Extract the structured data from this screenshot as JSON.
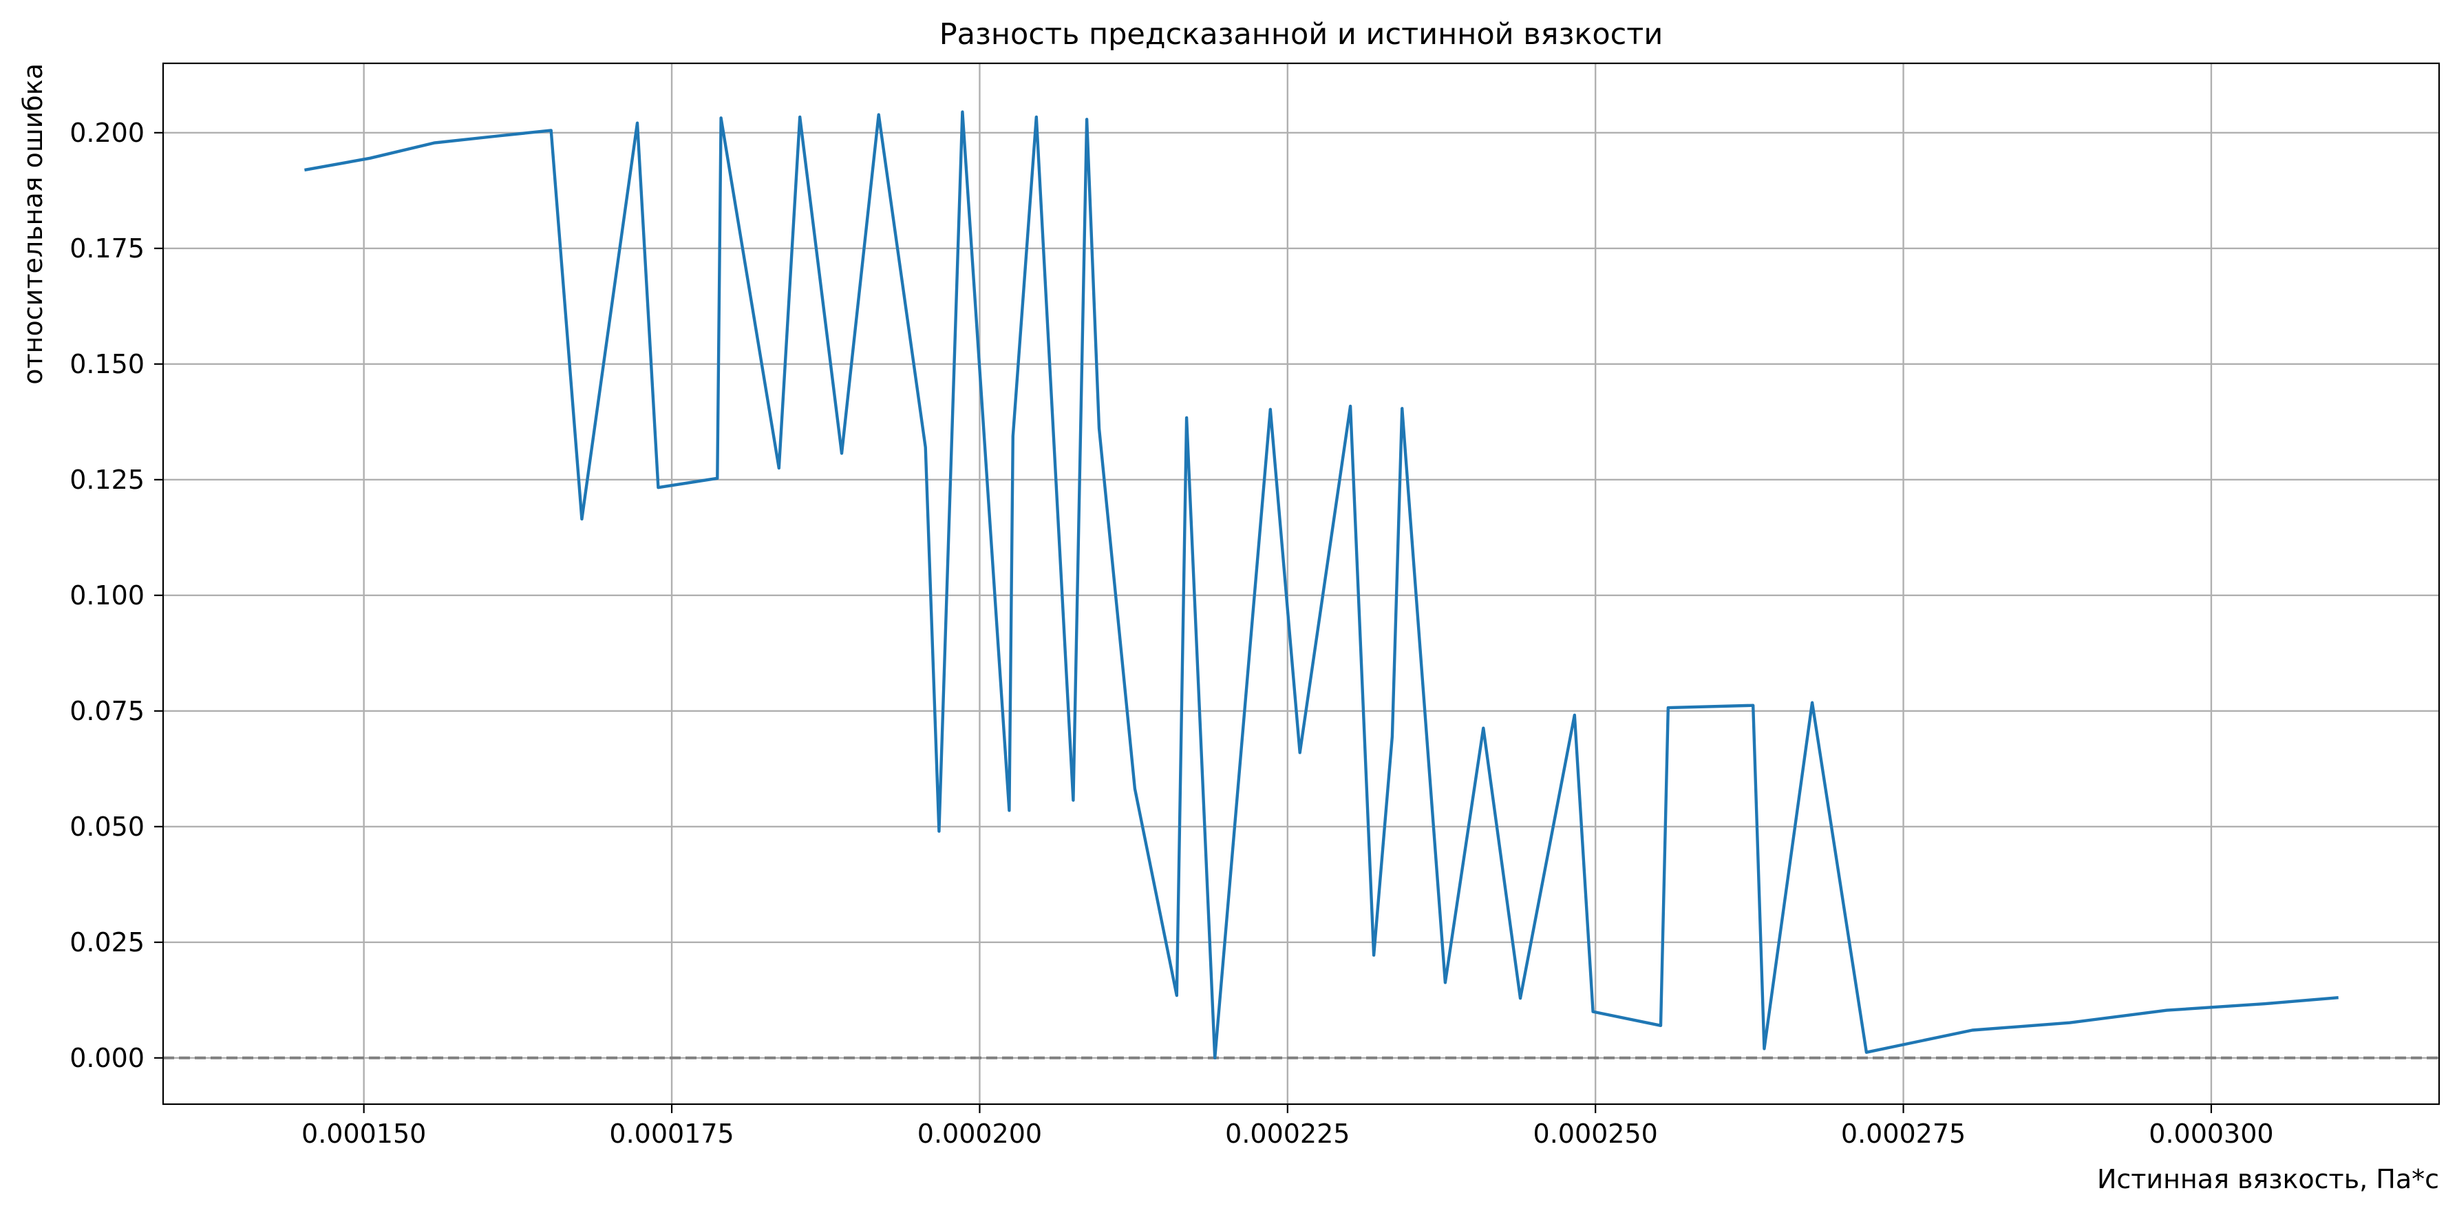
{
  "chart_data": {
    "type": "line",
    "title": "Разность предсказанной и истинной вязкости",
    "xlabel": "Истинная вязкость, Па*с",
    "ylabel": "относительная ошибка",
    "xlim": [
      0.0001337,
      0.0003185
    ],
    "ylim": [
      -0.01,
      0.215
    ],
    "x_ticks": [
      0.00015,
      0.000175,
      0.0002,
      0.000225,
      0.00025,
      0.000275,
      0.0003
    ],
    "x_tick_labels": [
      "0.000150",
      "0.000175",
      "0.000200",
      "0.000225",
      "0.000250",
      "0.000275",
      "0.000300"
    ],
    "y_ticks": [
      0.0,
      0.025,
      0.05,
      0.075,
      0.1,
      0.125,
      0.15,
      0.175,
      0.2
    ],
    "y_tick_labels": [
      "0.000",
      "0.025",
      "0.050",
      "0.075",
      "0.100",
      "0.125",
      "0.150",
      "0.175",
      "0.200"
    ],
    "grid": true,
    "reference_line": {
      "y": 0.0,
      "style": "dashed",
      "color": "#808080"
    },
    "series": [
      {
        "color": "#1f77b4",
        "x": [
          0.0001453,
          0.0001505,
          0.0001557,
          0.0001609,
          0.0001652,
          0.0001677,
          0.0001722,
          0.0001739,
          0.0001787,
          0.000179,
          0.0001837,
          0.0001854,
          0.0001888,
          0.0001918,
          0.0001956,
          0.0001967,
          0.0001986,
          0.0002024,
          0.0002027,
          0.0002046,
          0.0002076,
          0.0002087,
          0.0002097,
          0.0002126,
          0.000216,
          0.0002168,
          0.0002191,
          0.0002236,
          0.000226,
          0.0002301,
          0.000232,
          0.0002335,
          0.0002343,
          0.0002378,
          0.0002409,
          0.0002439,
          0.0002483,
          0.0002498,
          0.0002553,
          0.0002559,
          0.0002628,
          0.0002637,
          0.0002676,
          0.000272,
          0.0002806,
          0.0002885,
          0.0002964,
          0.0003043,
          0.0003102
        ],
        "y": [
          0.192,
          0.1945,
          0.1978,
          0.1993,
          0.2005,
          0.1165,
          0.2021,
          0.1233,
          0.1253,
          0.2032,
          0.1275,
          0.2034,
          0.1307,
          0.2039,
          0.132,
          0.049,
          0.2045,
          0.0535,
          0.1344,
          0.2034,
          0.0557,
          0.2029,
          0.1361,
          0.0582,
          0.0135,
          0.1384,
          0.0,
          0.1402,
          0.066,
          0.1409,
          0.0222,
          0.0695,
          0.1404,
          0.0163,
          0.0713,
          0.0129,
          0.0741,
          0.01,
          0.007,
          0.0757,
          0.0762,
          0.002,
          0.0768,
          0.0012,
          0.006,
          0.0076,
          0.0103,
          0.0117,
          0.013
        ]
      }
    ]
  }
}
